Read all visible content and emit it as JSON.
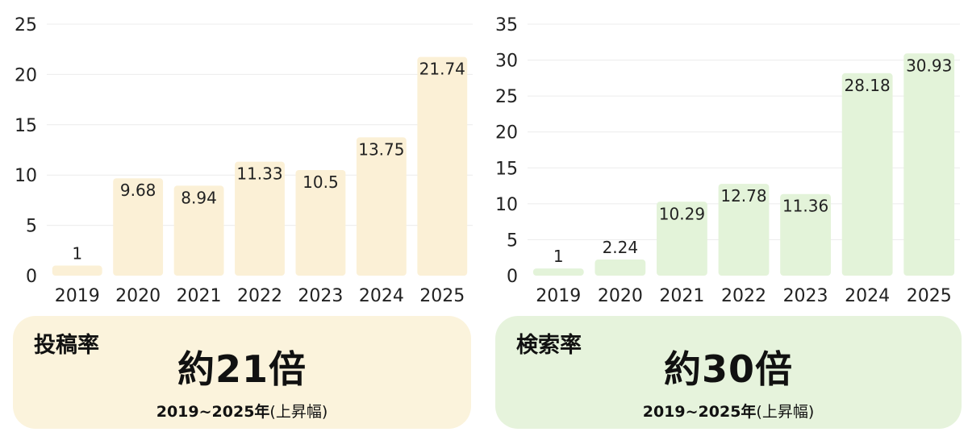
{
  "chart_data": [
    {
      "type": "bar",
      "categories": [
        "2019",
        "2020",
        "2021",
        "2022",
        "2023",
        "2024",
        "2025"
      ],
      "values": [
        1,
        9.68,
        8.94,
        11.33,
        10.5,
        13.75,
        21.74
      ],
      "value_labels": [
        "1",
        "9.68",
        "8.94",
        "11.33",
        "10.5",
        "13.75",
        "21.74"
      ],
      "ylim": [
        0,
        25
      ],
      "yticks": [
        0,
        5,
        10,
        15,
        20,
        25
      ],
      "grid": true,
      "bar_color": "#fbf0d6"
    },
    {
      "type": "bar",
      "categories": [
        "2019",
        "2020",
        "2021",
        "2022",
        "2023",
        "2024",
        "2025"
      ],
      "values": [
        1,
        2.24,
        10.29,
        12.78,
        11.36,
        28.18,
        30.93
      ],
      "value_labels": [
        "1",
        "2.24",
        "10.29",
        "12.78",
        "11.36",
        "28.18",
        "30.93"
      ],
      "ylim": [
        0,
        35
      ],
      "yticks": [
        0,
        5,
        10,
        15,
        20,
        25,
        30,
        35
      ],
      "grid": true,
      "bar_color": "#e3f3d9"
    }
  ],
  "cards": {
    "left": {
      "metric": "投稿率",
      "multiple": "約21倍",
      "period_years": "2019~2025年",
      "period_note": "(上昇幅)"
    },
    "right": {
      "metric": "検索率",
      "multiple": "約30倍",
      "period_years": "2019~2025年",
      "period_note": "(上昇幅)"
    }
  },
  "colors": {
    "left_card": "#fbf3dc",
    "right_card": "#e6f3dc"
  }
}
